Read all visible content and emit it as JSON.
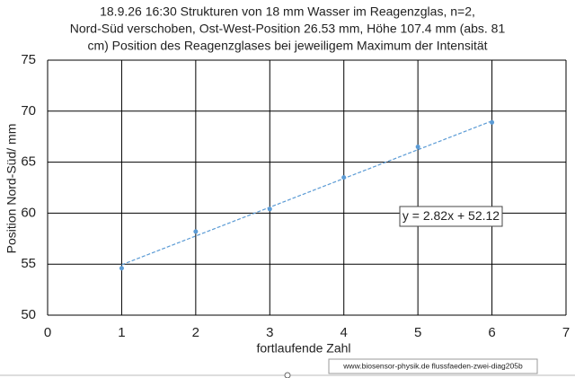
{
  "chart_data": {
    "type": "scatter",
    "title": [
      "18.9.26  16:30  Strukturen von 18 mm Wasser im Reagenzglas, n=2,",
      "Nord-Süd verschoben, Ost-West-Position 26.53  mm, Höhe 107.4 mm (abs. 81",
      "cm) Position des Reagenzglases bei jeweiligem Maximum der Intensität"
    ],
    "x_label": "fortlaufende Zahl",
    "y_label": "Position  Nord-Süd/ mm",
    "x": [
      1,
      2,
      3,
      4,
      5,
      6
    ],
    "values": [
      54.6,
      58.2,
      60.4,
      63.5,
      66.5,
      68.9
    ],
    "color": "#5b9bd5",
    "xlim": [
      0,
      7
    ],
    "xticks": [
      0,
      1,
      2,
      3,
      4,
      5,
      6,
      7
    ],
    "ylim": [
      50,
      75
    ],
    "yticks": [
      50,
      55,
      60,
      65,
      70,
      75
    ],
    "grid": true,
    "trendline": {
      "slope": 2.82,
      "intercept": 52.12,
      "label": "y = 2.82x + 52.12"
    },
    "footer": "www.biosensor-physik.de  flussfaeden-zwei-diag205b"
  }
}
